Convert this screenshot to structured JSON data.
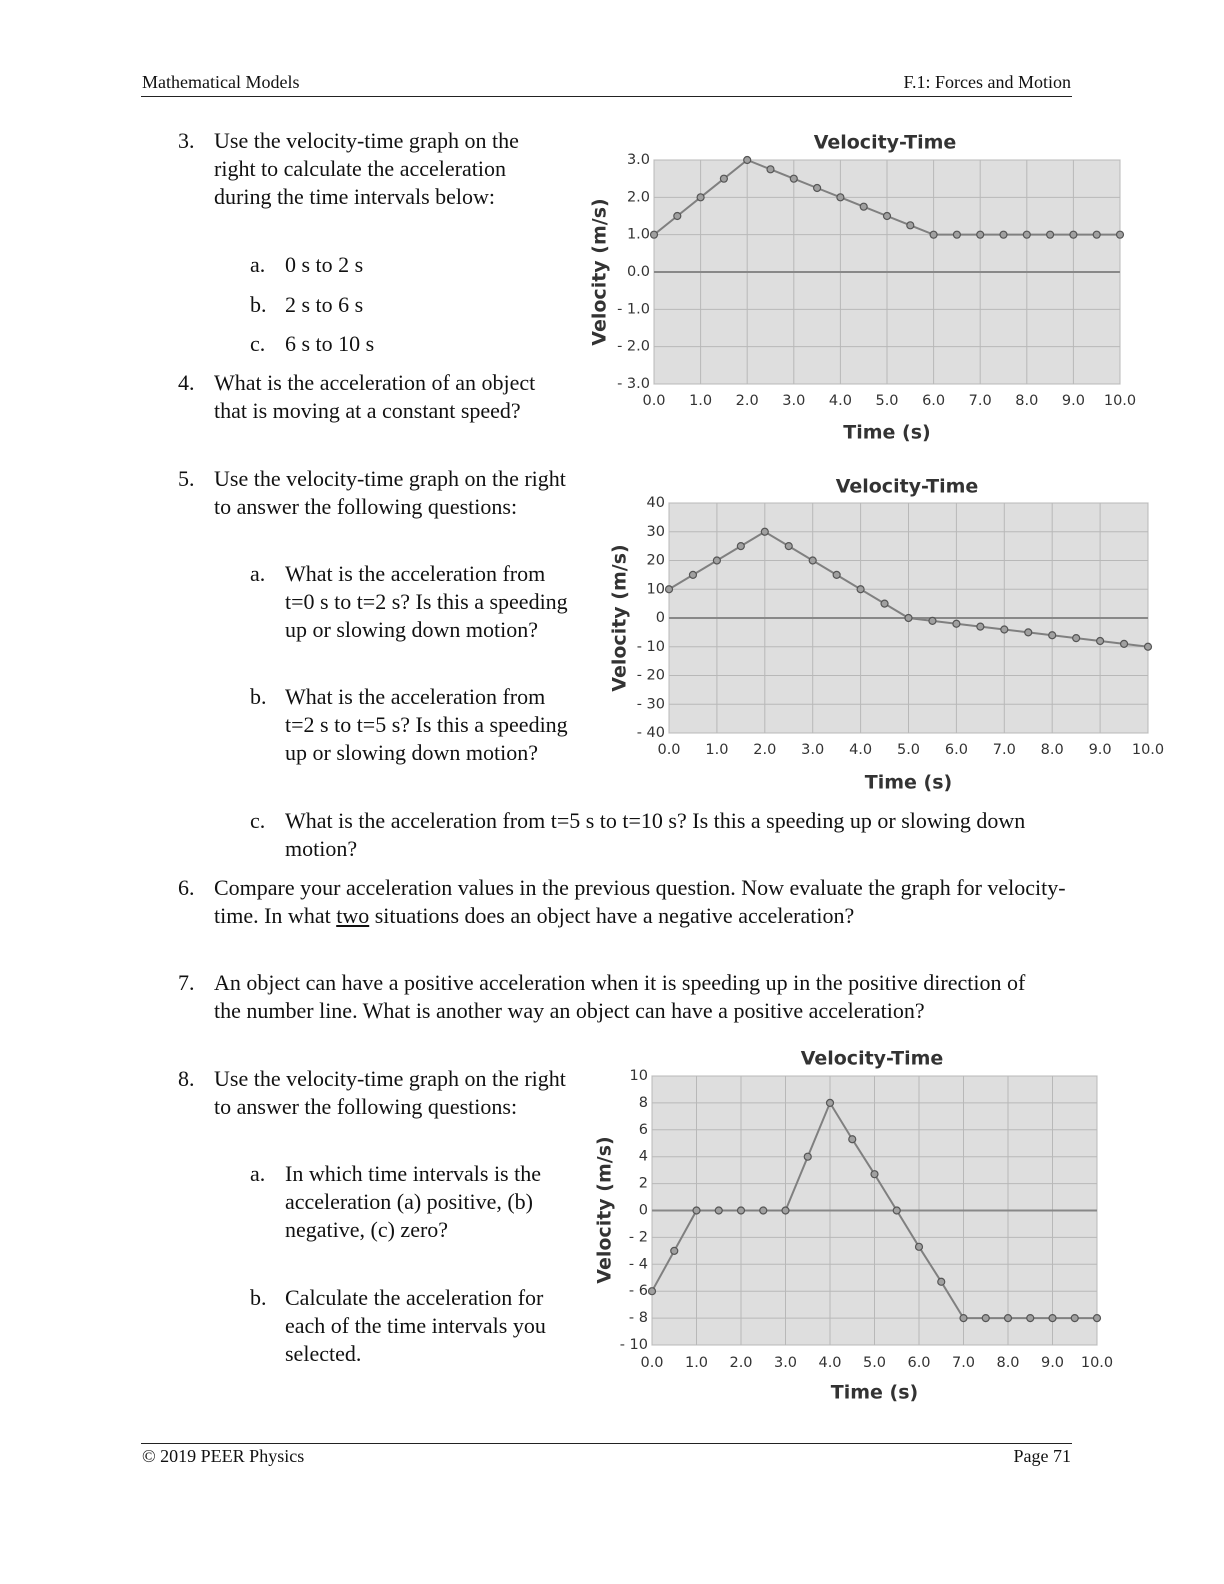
{
  "header": {
    "left": "Mathematical Models",
    "right": "F.1: Forces and Motion"
  },
  "questions": [
    {
      "number": "3.",
      "text": "Use the velocity-time graph on the right to calculate the acceleration during the time intervals below:",
      "items": [
        {
          "label": "a.",
          "text": "0 s to 2 s"
        },
        {
          "label": "b.",
          "text": "2 s to 6 s"
        },
        {
          "label": "c.",
          "text": "6 s to 10 s"
        }
      ]
    },
    {
      "number": "4.",
      "text": "What is the acceleration of an object that is moving at a constant speed?"
    },
    {
      "number": "5.",
      "text": "Use the velocity-time graph on the right to answer the following questions:",
      "items": [
        {
          "label": "a.",
          "text": "What is the acceleration from t=0 s to t=2 s? Is this a speeding up or slowing down motion?"
        },
        {
          "label": "b.",
          "text": "What is the acceleration from t=2 s to t=5 s? Is this a speeding up or slowing down motion?"
        },
        {
          "label": "c.",
          "text": "What is the acceleration from t=5 s to t=10 s? Is this a speeding up or slowing down motion?"
        }
      ]
    },
    {
      "number": "6.",
      "text": "Compare your acceleration values in the previous question.  Now evaluate the graph for velocity-time.  In what ",
      "underlined": "two",
      "text_end": " situations does an object have a negative acceleration?"
    },
    {
      "number": "7.",
      "text": "An object can have a positive acceleration when it is speeding up in the positive direction of the number line.  What is another way an object can have a positive acceleration?"
    },
    {
      "number": "8.",
      "text": "Use the velocity-time graph on the right to answer the following questions:",
      "items": [
        {
          "label": "a.",
          "text": "In which time intervals is the acceleration (a) positive, (b) negative, (c) zero?"
        },
        {
          "label": "b.",
          "text": "Calculate the acceleration for each of the time intervals you selected."
        }
      ]
    }
  ],
  "chart_data": [
    {
      "type": "line",
      "title": "Velocity-Time",
      "x_label": "Time (s)",
      "y_label": "Velocity (m/s)",
      "grid": true,
      "x": [
        0,
        0.5,
        1,
        1.5,
        2,
        2.5,
        3,
        3.5,
        4,
        4.5,
        5,
        5.5,
        6,
        6.5,
        7,
        7.5,
        8,
        8.5,
        9,
        9.5,
        10
      ],
      "series": [
        {
          "color": "#808080",
          "values": [
            1.0,
            1.5,
            2.0,
            2.5,
            3.0,
            2.75,
            2.5,
            2.25,
            2.0,
            1.75,
            1.5,
            1.25,
            1.0,
            1.0,
            1.0,
            1.0,
            1.0,
            1.0,
            1.0,
            1.0,
            1.0
          ]
        }
      ],
      "xlim": [
        0,
        10
      ],
      "xticks": [
        {
          "value": 0,
          "label": "0.0"
        },
        {
          "value": 1,
          "label": "1.0"
        },
        {
          "value": 2,
          "label": "2.0"
        },
        {
          "value": 3,
          "label": "3.0"
        },
        {
          "value": 4,
          "label": "4.0"
        },
        {
          "value": 5,
          "label": "5.0"
        },
        {
          "value": 6,
          "label": "6.0"
        },
        {
          "value": 7,
          "label": "7.0"
        },
        {
          "value": 8,
          "label": "8.0"
        },
        {
          "value": 9,
          "label": "9.0"
        },
        {
          "value": 10,
          "label": "10.0"
        }
      ],
      "ylim": [
        -3,
        3
      ],
      "yticks": [
        {
          "value": -3,
          "label": "- 3.0"
        },
        {
          "value": -2,
          "label": "- 2.0"
        },
        {
          "value": -1,
          "label": "- 1.0"
        },
        {
          "value": 0,
          "label": "0.0"
        },
        {
          "value": 1,
          "label": "1.0"
        },
        {
          "value": 2,
          "label": "2.0"
        },
        {
          "value": 3,
          "label": "3.0"
        }
      ]
    },
    {
      "type": "line",
      "title": "Velocity-Time",
      "x_label": "Time (s)",
      "y_label": "Velocity (m/s)",
      "grid": true,
      "x": [
        0,
        0.5,
        1,
        1.5,
        2,
        2.5,
        3,
        3.5,
        4,
        4.5,
        5,
        5.5,
        6,
        6.5,
        7,
        7.5,
        8,
        8.5,
        9,
        9.5,
        10
      ],
      "series": [
        {
          "color": "#808080",
          "values": [
            10,
            15,
            20,
            25,
            30,
            25,
            20,
            15,
            10,
            5,
            0,
            -1,
            -2,
            -3,
            -4,
            -5,
            -6,
            -7,
            -8,
            -9,
            -10
          ]
        }
      ],
      "xlim": [
        0,
        10
      ],
      "xticks": [
        {
          "value": 0,
          "label": "0.0"
        },
        {
          "value": 1,
          "label": "1.0"
        },
        {
          "value": 2,
          "label": "2.0"
        },
        {
          "value": 3,
          "label": "3.0"
        },
        {
          "value": 4,
          "label": "4.0"
        },
        {
          "value": 5,
          "label": "5.0"
        },
        {
          "value": 6,
          "label": "6.0"
        },
        {
          "value": 7,
          "label": "7.0"
        },
        {
          "value": 8,
          "label": "8.0"
        },
        {
          "value": 9,
          "label": "9.0"
        },
        {
          "value": 10,
          "label": "10.0"
        }
      ],
      "ylim": [
        -40,
        40
      ],
      "yticks": [
        {
          "value": -40,
          "label": "- 40"
        },
        {
          "value": -30,
          "label": "- 30"
        },
        {
          "value": -20,
          "label": "- 20"
        },
        {
          "value": -10,
          "label": "- 10"
        },
        0,
        10,
        20,
        30,
        40
      ]
    },
    {
      "type": "line",
      "title": "Velocity-Time",
      "x_label": "Time (s)",
      "y_label": "Velocity (m/s)",
      "grid": true,
      "x": [
        0,
        0.5,
        1,
        1.5,
        2,
        2.5,
        3,
        3.5,
        4,
        4.5,
        5,
        5.5,
        6,
        6.5,
        7,
        7.5,
        8,
        8.5,
        9,
        9.5,
        10
      ],
      "series": [
        {
          "color": "#808080",
          "values": [
            -6,
            -3,
            0,
            0,
            0,
            0,
            0,
            4,
            8,
            5.3,
            2.7,
            0,
            -2.7,
            -5.3,
            -8,
            -8,
            -8,
            -8,
            -8,
            -8,
            -8
          ]
        }
      ],
      "xlim": [
        0,
        10
      ],
      "xticks": [
        {
          "value": 0,
          "label": "0.0"
        },
        {
          "value": 1,
          "label": "1.0"
        },
        {
          "value": 2,
          "label": "2.0"
        },
        {
          "value": 3,
          "label": "3.0"
        },
        {
          "value": 4,
          "label": "4.0"
        },
        {
          "value": 5,
          "label": "5.0"
        },
        {
          "value": 6,
          "label": "6.0"
        },
        {
          "value": 7,
          "label": "7.0"
        },
        {
          "value": 8,
          "label": "8.0"
        },
        {
          "value": 9,
          "label": "9.0"
        },
        {
          "value": 10,
          "label": "10.0"
        }
      ],
      "ylim": [
        -10,
        10
      ],
      "yticks": [
        {
          "value": -10,
          "label": "- 10"
        },
        {
          "value": -8,
          "label": "- 8"
        },
        {
          "value": -6,
          "label": "- 6"
        },
        {
          "value": -4,
          "label": "- 4"
        },
        {
          "value": -2,
          "label": "- 2"
        },
        0,
        2,
        4,
        6,
        8,
        10
      ]
    }
  ],
  "footer": {
    "left": "© 2019 PEER Physics",
    "right": "Page 71"
  }
}
